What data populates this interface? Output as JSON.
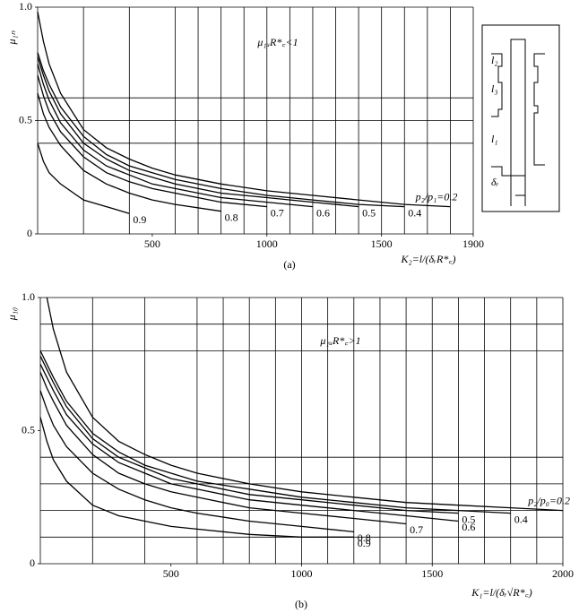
{
  "chart_data": [
    {
      "type": "line",
      "title": "(a)",
      "ylabel": "μ₁ₙ",
      "xlabel": "K₂=l/(δᵣR*꜀)",
      "annotation": "μ₁ᵤR*꜀<1",
      "inset_labels": [
        "l₂",
        "l₃",
        "l₁",
        "δᵣ"
      ],
      "x": [
        0,
        25,
        50,
        100,
        200,
        300,
        400,
        500,
        600,
        800,
        1000,
        1200,
        1400,
        1600,
        1800
      ],
      "series": [
        {
          "name": "p₂/p₁=0.2",
          "color": "#000000",
          "values": [
            0.98,
            0.85,
            0.75,
            0.62,
            0.46,
            0.38,
            0.33,
            0.29,
            0.26,
            0.22,
            0.19,
            0.17,
            0.15,
            0.13,
            0.12
          ]
        },
        {
          "name": "0.4",
          "color": "#000000",
          "values": [
            0.8,
            0.72,
            0.66,
            0.56,
            0.43,
            0.35,
            0.3,
            0.27,
            0.24,
            0.2,
            0.17,
            0.15,
            0.13,
            0.12,
            null
          ]
        },
        {
          "name": "0.5",
          "color": "#000000",
          "values": [
            0.78,
            0.7,
            0.63,
            0.53,
            0.4,
            0.33,
            0.28,
            0.25,
            0.22,
            0.18,
            0.16,
            0.14,
            0.12,
            null,
            null
          ]
        },
        {
          "name": "0.6",
          "color": "#000000",
          "values": [
            0.75,
            0.66,
            0.59,
            0.49,
            0.37,
            0.3,
            0.26,
            0.22,
            0.2,
            0.16,
            0.14,
            0.12,
            null,
            null,
            null
          ]
        },
        {
          "name": "0.7",
          "color": "#000000",
          "values": [
            0.7,
            0.61,
            0.54,
            0.45,
            0.34,
            0.27,
            0.23,
            0.2,
            0.18,
            0.14,
            0.12,
            null,
            null,
            null,
            null
          ]
        },
        {
          "name": "0.8",
          "color": "#000000",
          "values": [
            0.62,
            0.53,
            0.47,
            0.39,
            0.28,
            0.22,
            0.18,
            0.15,
            0.13,
            0.1,
            null,
            null,
            null,
            null,
            null
          ]
        },
        {
          "name": "0.9",
          "color": "#000000",
          "values": [
            0.4,
            0.32,
            0.27,
            0.22,
            0.15,
            0.12,
            0.09,
            null,
            null,
            null,
            null,
            null,
            null,
            null,
            null
          ]
        }
      ],
      "xlim": [
        0,
        1900
      ],
      "xticks": [
        500,
        1000,
        1500,
        1900
      ],
      "ylim": [
        0,
        1
      ],
      "yticks": [
        0,
        0.5,
        {
          "value": 1,
          "label": "1.0"
        }
      ],
      "xgrid": [
        200,
        400,
        600,
        700,
        800,
        900,
        1000,
        1100,
        1200,
        1300,
        1400,
        1500,
        1600,
        1700,
        1800,
        1900
      ],
      "ygrid": [
        0.4,
        0.5,
        0.6
      ]
    },
    {
      "type": "line",
      "title": "(b)",
      "ylabel": "μ₁₀",
      "xlabel": "K₁=l/(δᵣ√R*꜀)",
      "annotation": "μ₁ᵤR*꜀>1",
      "x": [
        0,
        25,
        50,
        100,
        200,
        300,
        400,
        500,
        600,
        800,
        1000,
        1200,
        1400,
        1600,
        1800,
        2000
      ],
      "series": [
        {
          "name": "p₂/p₀=0.2",
          "color": "#000000",
          "values": [
            null,
            1.0,
            0.88,
            0.72,
            0.55,
            0.46,
            0.41,
            0.37,
            0.34,
            0.3,
            0.27,
            0.25,
            0.23,
            0.22,
            0.21,
            0.2
          ]
        },
        {
          "name": "0.4",
          "color": "#000000",
          "values": [
            0.8,
            0.75,
            0.7,
            0.61,
            0.49,
            0.42,
            0.37,
            0.34,
            0.31,
            0.28,
            0.25,
            0.23,
            0.21,
            0.2,
            0.19,
            null
          ]
        },
        {
          "name": "0.5",
          "color": "#000000",
          "values": [
            0.78,
            0.73,
            0.68,
            0.59,
            0.47,
            0.4,
            0.36,
            0.32,
            0.3,
            0.26,
            0.24,
            0.22,
            0.2,
            0.19,
            null,
            null
          ]
        },
        {
          "name": "0.6",
          "color": "#000000",
          "values": [
            0.75,
            0.7,
            0.65,
            0.56,
            0.45,
            0.38,
            0.34,
            0.3,
            0.28,
            0.24,
            0.22,
            0.2,
            0.18,
            0.16,
            null,
            null
          ]
        },
        {
          "name": "0.7",
          "color": "#000000",
          "values": [
            0.72,
            0.66,
            0.61,
            0.52,
            0.41,
            0.34,
            0.3,
            0.27,
            0.25,
            0.21,
            0.19,
            0.17,
            0.15,
            null,
            null,
            null
          ]
        },
        {
          "name": "0.8",
          "color": "#000000",
          "values": [
            0.65,
            0.58,
            0.52,
            0.44,
            0.34,
            0.28,
            0.24,
            0.21,
            0.19,
            0.16,
            0.14,
            0.12,
            null,
            null,
            null,
            null
          ]
        },
        {
          "name": "0.9",
          "color": "#000000",
          "values": [
            0.55,
            0.46,
            0.39,
            0.31,
            0.22,
            0.18,
            0.16,
            0.14,
            0.13,
            0.11,
            0.1,
            0.1,
            null,
            null,
            null,
            null
          ]
        }
      ],
      "xlim": [
        0,
        2000
      ],
      "xticks": [
        500,
        1000,
        1500,
        2000
      ],
      "ylim": [
        0,
        1
      ],
      "yticks": [
        0,
        0.5,
        {
          "value": 1,
          "label": "1.0"
        }
      ],
      "xgrid": [
        200,
        400,
        600,
        700,
        800,
        900,
        1000,
        1100,
        1200,
        1300,
        1400,
        1500,
        1600,
        1700,
        1800,
        1900,
        2000
      ],
      "ygrid": [
        0.1,
        0.2,
        0.3,
        0.4,
        0.8,
        0.9
      ]
    }
  ]
}
